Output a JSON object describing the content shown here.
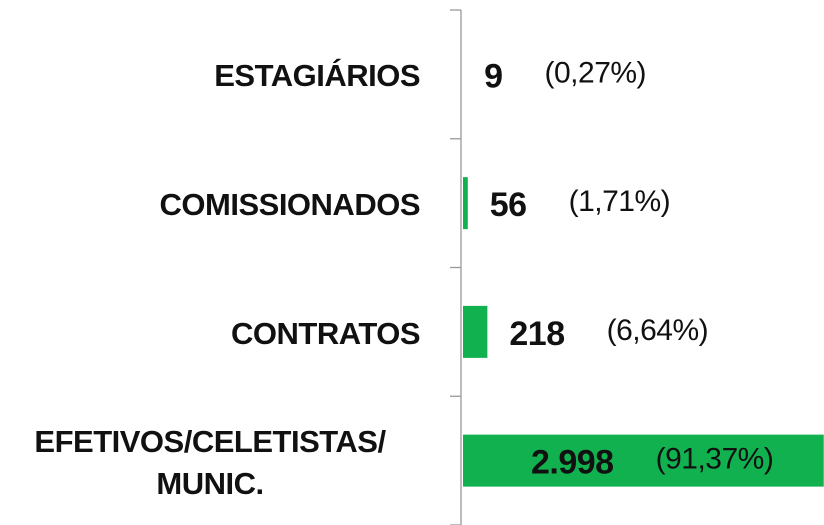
{
  "chart_data": {
    "type": "bar",
    "orientation": "horizontal",
    "categories": [
      "ESTAGIÁRIOS",
      "COMISSIONADOS",
      "CONTRATOS",
      "EFETIVOS/CELETISTAS/\nMUNIC."
    ],
    "values": [
      9,
      56,
      218,
      2998
    ],
    "value_labels": [
      "9",
      "56",
      "218",
      "2.998"
    ],
    "share_labels": [
      "(0,27%)",
      "(1,71%)",
      "(6,64%)",
      "(91,37%)"
    ],
    "color": "#12b150",
    "xlim": [
      0,
      3000
    ]
  }
}
